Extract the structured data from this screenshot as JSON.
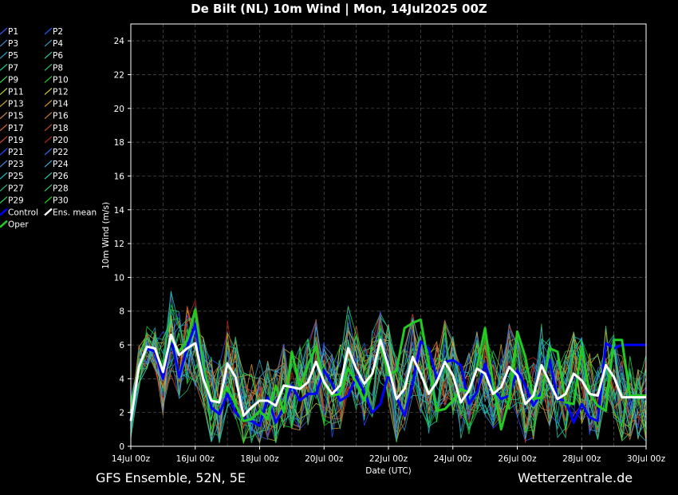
{
  "title": "De Bilt  (NL)  10m Wind | Mon, 14Jul2025 00Z",
  "footer": {
    "left": "GFS Ensemble, 52N, 5E",
    "right": "Wetterzentrale.de"
  },
  "chart_data": {
    "type": "line",
    "xlabel": "Date (UTC)",
    "ylabel": "10m Wind (m/s)",
    "ylim": [
      0,
      25
    ],
    "yticks": [
      0,
      2,
      4,
      6,
      8,
      10,
      12,
      14,
      16,
      18,
      20,
      22,
      24
    ],
    "xticks": [
      {
        "x": 0,
        "label": "14Jul 00z"
      },
      {
        "x": 2,
        "label": "16Jul 00z"
      },
      {
        "x": 4,
        "label": "18Jul 00z"
      },
      {
        "x": 6,
        "label": "20Jul 00z"
      },
      {
        "x": 8,
        "label": "22Jul 00z"
      },
      {
        "x": 10,
        "label": "24Jul 00z"
      },
      {
        "x": 12,
        "label": "26Jul 00z"
      },
      {
        "x": 14,
        "label": "28Jul 00z"
      },
      {
        "x": 16,
        "label": "30Jul 00z"
      }
    ],
    "xlim": [
      0,
      16
    ],
    "grid": true,
    "legend_position": "left",
    "x_step_days": 0.25,
    "series": [
      {
        "name": "Control",
        "color": "#0000ff",
        "width": 3,
        "values": [
          1.6,
          4.7,
          5.8,
          5.6,
          4.0,
          6.4,
          4.1,
          5.9,
          7.2,
          4.5,
          2.3,
          1.9,
          3.1,
          2.0,
          1.6,
          1.5,
          1.2,
          2.9,
          1.4,
          2.3,
          3.6,
          2.7,
          3.1,
          3.1,
          4.5,
          3.7,
          2.7,
          3.0,
          4.1,
          3.2,
          2.0,
          2.5,
          4.3,
          2.9,
          1.8,
          3.7,
          6.2,
          5.8,
          4.0,
          5.0,
          5.1,
          4.8,
          2.5,
          3.2,
          4.9,
          3.4,
          2.8,
          3.0,
          4.5,
          3.6,
          2.4,
          3.2,
          5.1,
          2.8,
          2.7,
          1.4,
          2.5,
          1.7,
          1.5,
          6.1,
          5.8,
          6.0,
          6.0,
          6.0,
          6.0
        ]
      },
      {
        "name": "Oper",
        "color": "#22cc22",
        "width": 3,
        "values": [
          2.0,
          4.5,
          5.9,
          5.8,
          4.5,
          6.4,
          5.6,
          6.3,
          8.1,
          4.8,
          2.8,
          2.7,
          3.5,
          2.5,
          1.5,
          1.6,
          2.1,
          1.6,
          3.6,
          2.0,
          5.6,
          3.5,
          4.8,
          5.9,
          3.7,
          3.0,
          3.1,
          4.6,
          3.8,
          2.7,
          4.4,
          6.0,
          4.2,
          4.5,
          7.0,
          7.3,
          7.5,
          4.8,
          2.1,
          2.2,
          2.7,
          3.4,
          3.2,
          4.7,
          7.0,
          3.7,
          1.0,
          2.8,
          6.8,
          5.3,
          2.8,
          2.9,
          5.8,
          5.6,
          2.6,
          2.5,
          5.9,
          3.1,
          2.4,
          2.1,
          6.3,
          6.3,
          3.0,
          3.0,
          3.0
        ]
      },
      {
        "name": "Ens. mean",
        "color": "#ffffff",
        "width": 3,
        "values": [
          1.5,
          4.7,
          5.9,
          5.8,
          4.4,
          6.6,
          5.4,
          5.8,
          6.1,
          4.0,
          2.7,
          2.6,
          4.9,
          4.1,
          1.8,
          2.3,
          2.7,
          2.7,
          2.4,
          3.6,
          3.5,
          3.4,
          3.8,
          5.0,
          3.8,
          3.1,
          3.6,
          5.8,
          4.6,
          3.7,
          4.3,
          6.3,
          4.7,
          2.8,
          3.4,
          5.3,
          4.3,
          3.1,
          3.8,
          5.0,
          4.2,
          2.6,
          3.3,
          4.6,
          4.3,
          3.1,
          3.5,
          4.7,
          4.2,
          2.5,
          3.0,
          4.8,
          3.8,
          2.8,
          3.1,
          4.3,
          3.9,
          3.1,
          3.0,
          4.8,
          4.1,
          2.9,
          2.9,
          2.9,
          2.9
        ]
      }
    ],
    "legend": [
      [
        "P1",
        "#3355ff"
      ],
      [
        "P2",
        "#2255ee"
      ],
      [
        "P3",
        "#4488cc"
      ],
      [
        "P4",
        "#3399cc"
      ],
      [
        "P5",
        "#22aacc"
      ],
      [
        "P6",
        "#22ccaa"
      ],
      [
        "P7",
        "#22cc88"
      ],
      [
        "P8",
        "#33bb66"
      ],
      [
        "P9",
        "#33dd55"
      ],
      [
        "P10",
        "#22cc22"
      ],
      [
        "P11",
        "#bbcc33"
      ],
      [
        "P12",
        "#ccbb33"
      ],
      [
        "P13",
        "#ccaa22"
      ],
      [
        "P14",
        "#dd9922"
      ],
      [
        "P15",
        "#cc8844"
      ],
      [
        "P16",
        "#cc7733"
      ],
      [
        "P17",
        "#dd6633"
      ],
      [
        "P18",
        "#cc4422"
      ],
      [
        "P19",
        "#dd4433"
      ],
      [
        "P20",
        "#bb2211"
      ],
      [
        "P21",
        "#2244ff"
      ],
      [
        "P22",
        "#3366dd"
      ],
      [
        "P23",
        "#4488dd"
      ],
      [
        "P24",
        "#33aadd"
      ],
      [
        "P25",
        "#22bbcc"
      ],
      [
        "P26",
        "#22ccaa"
      ],
      [
        "P27",
        "#22bb88"
      ],
      [
        "P28",
        "#33cc66"
      ],
      [
        "P29",
        "#22dd44"
      ],
      [
        "P30",
        "#11dd11"
      ],
      [
        "Control",
        "#0000ff"
      ],
      [
        "Ens. mean",
        "#ffffff"
      ],
      [
        "Oper",
        "#22cc22"
      ],
      [
        "",
        ""
      ]
    ]
  }
}
